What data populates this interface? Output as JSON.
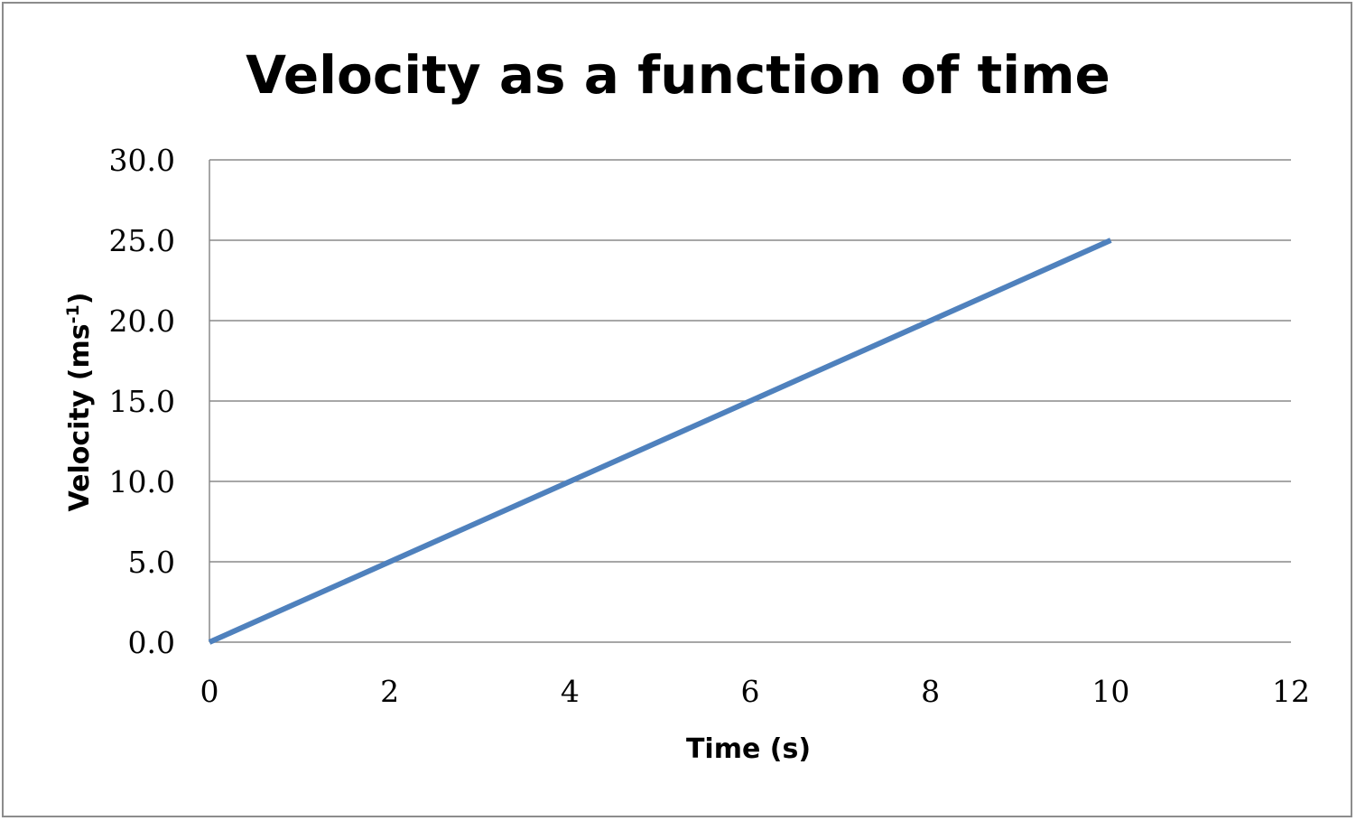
{
  "chart_data": {
    "type": "line",
    "title": "Velocity as a function of time",
    "xlabel": "Time (s)",
    "ylabel": "Velocity (ms",
    "ylabel_superscript": "-1",
    "ylabel_suffix": ")",
    "xlim": [
      0,
      12
    ],
    "ylim": [
      0,
      30
    ],
    "x_ticks": [
      "0",
      "2",
      "4",
      "6",
      "8",
      "10",
      "12"
    ],
    "y_ticks": [
      "0.0",
      "5.0",
      "10.0",
      "15.0",
      "20.0",
      "25.0",
      "30.0"
    ],
    "grid": "horizontal",
    "legend": "none",
    "series": [
      {
        "color": "#4f81bd",
        "x": [
          0,
          10
        ],
        "y": [
          0.0,
          25.0
        ]
      }
    ]
  }
}
